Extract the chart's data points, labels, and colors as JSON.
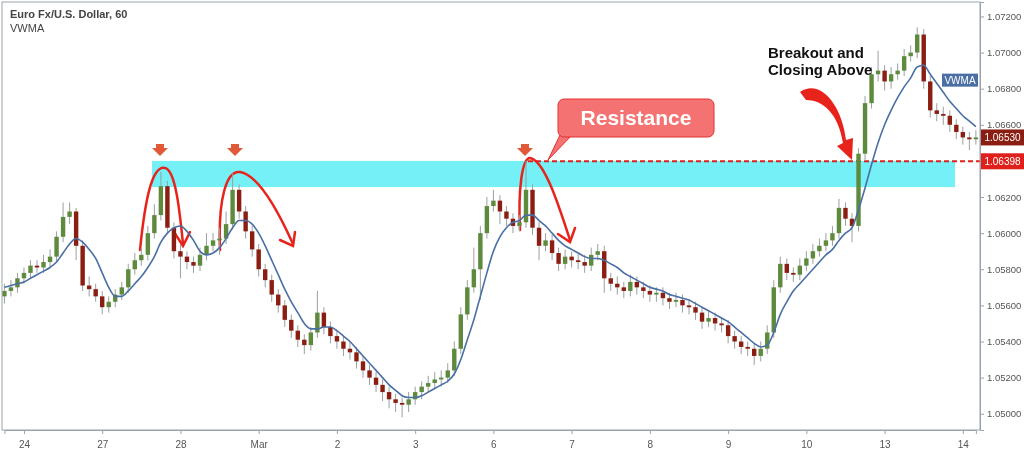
{
  "chart_data": {
    "type": "candlestick",
    "title": "Euro Fx/U.S. Dollar, 60",
    "subtitle": "VWMA",
    "categories": [
      null,
      null,
      null,
      "24",
      null,
      null,
      null,
      null,
      null,
      null,
      null,
      null,
      null,
      null,
      null,
      "27",
      null,
      null,
      null,
      null,
      null,
      null,
      null,
      null,
      null,
      null,
      null,
      "28",
      null,
      null,
      null,
      null,
      null,
      null,
      null,
      null,
      null,
      null,
      null,
      "Mar",
      null,
      null,
      null,
      null,
      null,
      null,
      null,
      null,
      null,
      null,
      null,
      "2",
      null,
      null,
      null,
      null,
      null,
      null,
      null,
      null,
      null,
      null,
      null,
      "3",
      null,
      null,
      null,
      null,
      null,
      null,
      null,
      null,
      null,
      null,
      null,
      "6",
      null,
      null,
      null,
      null,
      null,
      null,
      null,
      null,
      null,
      null,
      null,
      "7",
      null,
      null,
      null,
      null,
      null,
      null,
      null,
      null,
      null,
      null,
      null,
      "8",
      null,
      null,
      null,
      null,
      null,
      null,
      null,
      null,
      null,
      null,
      null,
      "9",
      null,
      null,
      null,
      null,
      null,
      null,
      null,
      null,
      null,
      null,
      null,
      "10",
      null,
      null,
      null,
      null,
      null,
      null,
      null,
      null,
      null,
      null,
      null,
      "13",
      null,
      null,
      null,
      null,
      null,
      null,
      null,
      null,
      null,
      null,
      null,
      "14",
      null,
      null
    ],
    "ohlc": [
      [
        1.0565,
        1.0572,
        1.0561,
        1.0568
      ],
      [
        1.0568,
        1.0574,
        1.0565,
        1.057
      ],
      [
        1.057,
        1.0578,
        1.0567,
        1.0575
      ],
      [
        1.0575,
        1.0581,
        1.0572,
        1.0578
      ],
      [
        1.0578,
        1.0585,
        1.0575,
        1.0582
      ],
      [
        1.0582,
        1.0585,
        1.0578,
        1.0581
      ],
      [
        1.0581,
        1.0588,
        1.0578,
        1.0584
      ],
      [
        1.0584,
        1.0591,
        1.0581,
        1.0587
      ],
      [
        1.0587,
        1.0601,
        1.0584,
        1.0598
      ],
      [
        1.0598,
        1.0617,
        1.0595,
        1.0609
      ],
      [
        1.0609,
        1.0617,
        1.0605,
        1.0612
      ],
      [
        1.0612,
        1.0614,
        1.0585,
        1.0593
      ],
      [
        1.0593,
        1.0596,
        1.0568,
        1.0571
      ],
      [
        1.0571,
        1.0576,
        1.0565,
        1.0569
      ],
      [
        1.0569,
        1.0572,
        1.0562,
        1.0565
      ],
      [
        1.0565,
        1.0568,
        1.0555,
        1.0559
      ],
      [
        1.0559,
        1.0565,
        1.0556,
        1.0562
      ],
      [
        1.0562,
        1.0569,
        1.0559,
        1.0566
      ],
      [
        1.0566,
        1.0573,
        1.0563,
        1.057
      ],
      [
        1.057,
        1.0583,
        1.0567,
        1.058
      ],
      [
        1.058,
        1.0589,
        1.0577,
        1.0585
      ],
      [
        1.0585,
        1.0592,
        1.0582,
        1.0588
      ],
      [
        1.0588,
        1.0604,
        1.0585,
        1.06
      ],
      [
        1.06,
        1.0616,
        1.0597,
        1.061
      ],
      [
        1.061,
        1.0634,
        1.0607,
        1.0626
      ],
      [
        1.0626,
        1.0629,
        1.06,
        1.0603
      ],
      [
        1.0603,
        1.0606,
        1.0586,
        1.059
      ],
      [
        1.059,
        1.0594,
        1.0575,
        1.0587
      ],
      [
        1.0587,
        1.059,
        1.058,
        1.0584
      ],
      [
        1.0584,
        1.0587,
        1.0578,
        1.0582
      ],
      [
        1.0582,
        1.0592,
        1.0579,
        1.0588
      ],
      [
        1.0588,
        1.06,
        1.0585,
        1.0593
      ],
      [
        1.0593,
        1.06,
        1.059,
        1.0596
      ],
      [
        1.0596,
        1.0603,
        1.0588,
        1.0597
      ],
      [
        1.0597,
        1.0612,
        1.0594,
        1.0605
      ],
      [
        1.0605,
        1.0633,
        1.0602,
        1.0624
      ],
      [
        1.0624,
        1.0627,
        1.0608,
        1.0612
      ],
      [
        1.0612,
        1.0615,
        1.0597,
        1.0601
      ],
      [
        1.0601,
        1.0604,
        1.0587,
        1.0591
      ],
      [
        1.0591,
        1.0594,
        1.0576,
        1.058
      ],
      [
        1.058,
        1.0583,
        1.057,
        1.0574
      ],
      [
        1.0574,
        1.0577,
        1.0562,
        1.0566
      ],
      [
        1.0566,
        1.0569,
        1.0556,
        1.056
      ],
      [
        1.056,
        1.0563,
        1.0548,
        1.0552
      ],
      [
        1.0552,
        1.0555,
        1.0542,
        1.0546
      ],
      [
        1.0546,
        1.0549,
        1.0537,
        1.0541
      ],
      [
        1.0541,
        1.0544,
        1.0533,
        1.0538
      ],
      [
        1.0538,
        1.0548,
        1.0535,
        1.0545
      ],
      [
        1.0545,
        1.0568,
        1.0542,
        1.0556
      ],
      [
        1.0556,
        1.0559,
        1.0544,
        1.0548
      ],
      [
        1.0548,
        1.0551,
        1.0539,
        1.0543
      ],
      [
        1.0543,
        1.0546,
        1.0536,
        1.054
      ],
      [
        1.054,
        1.0543,
        1.0532,
        1.0536
      ],
      [
        1.0536,
        1.054,
        1.053,
        1.0534
      ],
      [
        1.0534,
        1.0537,
        1.0525,
        1.0529
      ],
      [
        1.0529,
        1.0532,
        1.052,
        1.0524
      ],
      [
        1.0524,
        1.0527,
        1.0516,
        1.052
      ],
      [
        1.052,
        1.0523,
        1.0512,
        1.0516
      ],
      [
        1.0516,
        1.0519,
        1.0507,
        1.0512
      ],
      [
        1.0512,
        1.0515,
        1.0503,
        1.0508
      ],
      [
        1.0508,
        1.0511,
        1.0501,
        1.0506
      ],
      [
        1.0506,
        1.0509,
        1.0498,
        1.0505
      ],
      [
        1.0505,
        1.0512,
        1.0501,
        1.0508
      ],
      [
        1.0508,
        1.0515,
        1.0505,
        1.0512
      ],
      [
        1.0512,
        1.0518,
        1.0508,
        1.0515
      ],
      [
        1.0515,
        1.0521,
        1.0512,
        1.0517
      ],
      [
        1.0517,
        1.0523,
        1.0514,
        1.0519
      ],
      [
        1.0519,
        1.0524,
        1.0515,
        1.052
      ],
      [
        1.052,
        1.0528,
        1.0517,
        1.0524
      ],
      [
        1.0524,
        1.054,
        1.0521,
        1.0536
      ],
      [
        1.0536,
        1.0559,
        1.0533,
        1.0555
      ],
      [
        1.0555,
        1.0574,
        1.0552,
        1.057
      ],
      [
        1.057,
        1.0592,
        1.0567,
        1.058
      ],
      [
        1.058,
        1.0604,
        1.0563,
        1.06
      ],
      [
        1.06,
        1.062,
        1.0597,
        1.0615
      ],
      [
        1.0615,
        1.0624,
        1.0612,
        1.0618
      ],
      [
        1.0618,
        1.0621,
        1.0605,
        1.0612
      ],
      [
        1.0612,
        1.0615,
        1.0604,
        1.0608
      ],
      [
        1.0608,
        1.0611,
        1.06,
        1.0604
      ],
      [
        1.0604,
        1.061,
        1.0601,
        1.0606
      ],
      [
        1.0606,
        1.064,
        1.0603,
        1.0624
      ],
      [
        1.0624,
        1.0627,
        1.0599,
        1.0603
      ],
      [
        1.0603,
        1.0606,
        1.0585,
        1.0593
      ],
      [
        1.0593,
        1.06,
        1.059,
        1.0596
      ],
      [
        1.0596,
        1.0599,
        1.0585,
        1.0589
      ],
      [
        1.0589,
        1.0592,
        1.0579,
        1.0583
      ],
      [
        1.0583,
        1.0591,
        1.058,
        1.0587
      ],
      [
        1.0587,
        1.059,
        1.0581,
        1.0585
      ],
      [
        1.0585,
        1.0589,
        1.058,
        1.0584
      ],
      [
        1.0584,
        1.0588,
        1.0578,
        1.0582
      ],
      [
        1.0582,
        1.0592,
        1.0579,
        1.0588
      ],
      [
        1.0588,
        1.0594,
        1.0585,
        1.059
      ],
      [
        1.059,
        1.0593,
        1.0567,
        1.0575
      ],
      [
        1.0575,
        1.0578,
        1.0568,
        1.0572
      ],
      [
        1.0572,
        1.0576,
        1.0566,
        1.057
      ],
      [
        1.057,
        1.0573,
        1.0564,
        1.0568
      ],
      [
        1.0568,
        1.0577,
        1.0565,
        1.0573
      ],
      [
        1.0573,
        1.0576,
        1.0566,
        1.057
      ],
      [
        1.057,
        1.0573,
        1.0564,
        1.0568
      ],
      [
        1.0568,
        1.0571,
        1.0562,
        1.0566
      ],
      [
        1.0566,
        1.057,
        1.0562,
        1.0567
      ],
      [
        1.0567,
        1.057,
        1.056,
        1.0564
      ],
      [
        1.0564,
        1.0567,
        1.0558,
        1.0562
      ],
      [
        1.0562,
        1.0567,
        1.0559,
        1.0563
      ],
      [
        1.0563,
        1.0566,
        1.0556,
        1.056
      ],
      [
        1.056,
        1.0563,
        1.0555,
        1.0559
      ],
      [
        1.0559,
        1.0562,
        1.0552,
        1.0556
      ],
      [
        1.0556,
        1.0559,
        1.0547,
        1.0551
      ],
      [
        1.0551,
        1.0557,
        1.0548,
        1.0553
      ],
      [
        1.0553,
        1.0556,
        1.0546,
        1.055
      ],
      [
        1.055,
        1.0553,
        1.0545,
        1.0549
      ],
      [
        1.0549,
        1.0552,
        1.0539,
        1.0543
      ],
      [
        1.0543,
        1.0546,
        1.0536,
        1.054
      ],
      [
        1.054,
        1.0543,
        1.0533,
        1.0537
      ],
      [
        1.0537,
        1.054,
        1.0532,
        1.0536
      ],
      [
        1.0536,
        1.0539,
        1.0527,
        1.0532
      ],
      [
        1.0532,
        1.054,
        1.0529,
        1.0536
      ],
      [
        1.0536,
        1.0549,
        1.0533,
        1.0545
      ],
      [
        1.0545,
        1.0574,
        1.0542,
        1.057
      ],
      [
        1.057,
        1.0587,
        1.0567,
        1.0583
      ],
      [
        1.0583,
        1.0586,
        1.0574,
        1.0578
      ],
      [
        1.0578,
        1.0581,
        1.0573,
        1.0577
      ],
      [
        1.0577,
        1.0586,
        1.0574,
        1.0582
      ],
      [
        1.0582,
        1.059,
        1.0579,
        1.0586
      ],
      [
        1.0586,
        1.0594,
        1.0583,
        1.059
      ],
      [
        1.059,
        1.0597,
        1.0587,
        1.0593
      ],
      [
        1.0593,
        1.06,
        1.059,
        1.0596
      ],
      [
        1.0596,
        1.0604,
        1.0593,
        1.06
      ],
      [
        1.06,
        1.0619,
        1.0597,
        1.0614
      ],
      [
        1.0614,
        1.0617,
        1.0604,
        1.0608
      ],
      [
        1.0608,
        1.0611,
        1.0595,
        1.0604
      ],
      [
        1.0604,
        1.0647,
        1.0601,
        1.0644
      ],
      [
        1.0644,
        1.0676,
        1.064,
        1.0672
      ],
      [
        1.0672,
        1.0692,
        1.0669,
        1.0688
      ],
      [
        1.0688,
        1.0701,
        1.0684,
        1.069
      ],
      [
        1.069,
        1.0693,
        1.0679,
        1.0684
      ],
      [
        1.0684,
        1.0692,
        1.068,
        1.0688
      ],
      [
        1.0688,
        1.0694,
        1.0685,
        1.069
      ],
      [
        1.069,
        1.0702,
        1.0687,
        1.0698
      ],
      [
        1.0698,
        1.0704,
        1.0695,
        1.07
      ],
      [
        1.07,
        1.0714,
        1.0697,
        1.071
      ],
      [
        1.071,
        1.0713,
        1.068,
        1.0684
      ],
      [
        1.0684,
        1.0687,
        1.0664,
        1.0668
      ],
      [
        1.0668,
        1.0672,
        1.0662,
        1.0666
      ],
      [
        1.0666,
        1.067,
        1.066,
        1.0665
      ],
      [
        1.0665,
        1.0668,
        1.0656,
        1.066
      ],
      [
        1.066,
        1.0663,
        1.0652,
        1.0656
      ],
      [
        1.0656,
        1.0659,
        1.0649,
        1.0653
      ],
      [
        1.0653,
        1.0656,
        1.0646,
        1.0652
      ],
      [
        1.0652,
        1.0657,
        1.0649,
        1.0653
      ]
    ],
    "colors": [
      "#5d8a3c",
      "#5d8a3c",
      "#5d8a3c",
      "#5d8a3c",
      "#5d8a3c",
      "#8b1e12",
      "#5d8a3c",
      "#5d8a3c",
      "#5d8a3c",
      "#5d8a3c",
      "#5d8a3c",
      "#8b1e12",
      "#8b1e12",
      "#8b1e12",
      "#8b1e12",
      "#8b1e12",
      "#5d8a3c",
      "#5d8a3c",
      "#5d8a3c",
      "#5d8a3c",
      "#5d8a3c",
      "#5d8a3c",
      "#5d8a3c",
      "#5d8a3c",
      "#5d8a3c",
      "#8b1e12",
      "#8b1e12",
      "#8b1e12",
      "#8b1e12",
      "#8b1e12",
      "#5d8a3c",
      "#5d8a3c",
      "#5d8a3c",
      "#5d8a3c",
      "#5d8a3c",
      "#5d8a3c",
      "#8b1e12",
      "#8b1e12",
      "#8b1e12",
      "#8b1e12",
      "#8b1e12",
      "#8b1e12",
      "#8b1e12",
      "#8b1e12",
      "#8b1e12",
      "#8b1e12",
      "#8b1e12",
      "#5d8a3c",
      "#5d8a3c",
      "#8b1e12",
      "#8b1e12",
      "#8b1e12",
      "#8b1e12",
      "#8b1e12",
      "#8b1e12",
      "#8b1e12",
      "#8b1e12",
      "#8b1e12",
      "#8b1e12",
      "#8b1e12",
      "#8b1e12",
      "#8b1e12",
      "#5d8a3c",
      "#5d8a3c",
      "#5d8a3c",
      "#5d8a3c",
      "#5d8a3c",
      "#5d8a3c",
      "#5d8a3c",
      "#5d8a3c",
      "#5d8a3c",
      "#5d8a3c",
      "#5d8a3c",
      "#5d8a3c",
      "#5d8a3c",
      "#5d8a3c",
      "#8b1e12",
      "#8b1e12",
      "#8b1e12",
      "#5d8a3c",
      "#5d8a3c",
      "#8b1e12",
      "#8b1e12",
      "#5d8a3c",
      "#8b1e12",
      "#8b1e12",
      "#5d8a3c",
      "#8b1e12",
      "#8b1e12",
      "#8b1e12",
      "#5d8a3c",
      "#5d8a3c",
      "#8b1e12",
      "#8b1e12",
      "#8b1e12",
      "#8b1e12",
      "#5d8a3c",
      "#8b1e12",
      "#8b1e12",
      "#8b1e12",
      "#5d8a3c",
      "#8b1e12",
      "#8b1e12",
      "#5d8a3c",
      "#8b1e12",
      "#8b1e12",
      "#8b1e12",
      "#8b1e12",
      "#5d8a3c",
      "#8b1e12",
      "#8b1e12",
      "#8b1e12",
      "#8b1e12",
      "#8b1e12",
      "#8b1e12",
      "#8b1e12",
      "#5d8a3c",
      "#5d8a3c",
      "#5d8a3c",
      "#5d8a3c",
      "#8b1e12",
      "#8b1e12",
      "#5d8a3c",
      "#5d8a3c",
      "#5d8a3c",
      "#5d8a3c",
      "#5d8a3c",
      "#5d8a3c",
      "#5d8a3c",
      "#8b1e12",
      "#8b1e12",
      "#5d8a3c",
      "#5d8a3c",
      "#5d8a3c",
      "#5d8a3c",
      "#8b1e12",
      "#5d8a3c",
      "#5d8a3c",
      "#5d8a3c",
      "#5d8a3c",
      "#5d8a3c",
      "#8b1e12",
      "#8b1e12",
      "#8b1e12",
      "#8b1e12",
      "#8b1e12",
      "#8b1e12",
      "#8b1e12",
      "#8b1e12",
      "#5d8a3c"
    ],
    "series": [
      {
        "name": "VWMA",
        "type": "line",
        "color": "#4a6fa5",
        "values": [
          1.057,
          1.0571,
          1.0572,
          1.0573,
          1.0575,
          1.0577,
          1.0579,
          1.0581,
          1.0584,
          1.0589,
          1.0594,
          1.0597,
          1.0595,
          1.0591,
          1.0586,
          1.0578,
          1.057,
          1.0565,
          1.0565,
          1.0568,
          1.0572,
          1.0576,
          1.0581,
          1.0587,
          1.0595,
          1.06,
          1.0603,
          1.0604,
          1.0601,
          1.0596,
          1.059,
          1.0588,
          1.0589,
          1.0592,
          1.0597,
          1.0603,
          1.0607,
          1.0607,
          1.0605,
          1.06,
          1.0593,
          1.0585,
          1.0577,
          1.0569,
          1.0562,
          1.0556,
          1.055,
          1.0547,
          1.0547,
          1.0548,
          1.0548,
          1.0546,
          1.0543,
          1.054,
          1.0536,
          1.0532,
          1.0528,
          1.0524,
          1.052,
          1.0516,
          1.0513,
          1.051,
          1.0509,
          1.0509,
          1.051,
          1.0512,
          1.0514,
          1.0516,
          1.0518,
          1.0522,
          1.053,
          1.0541,
          1.0552,
          1.0565,
          1.0578,
          1.059,
          1.0598,
          1.0603,
          1.0606,
          1.0607,
          1.061,
          1.061,
          1.0607,
          1.0604,
          1.06,
          1.0596,
          1.0593,
          1.0591,
          1.0589,
          1.0587,
          1.0586,
          1.0586,
          1.0585,
          1.0583,
          1.0581,
          1.0578,
          1.0576,
          1.0574,
          1.0572,
          1.057,
          1.0569,
          1.0568,
          1.0566,
          1.0565,
          1.0564,
          1.0563,
          1.0561,
          1.0559,
          1.0557,
          1.0555,
          1.0553,
          1.0551,
          1.0548,
          1.0545,
          1.0542,
          1.0539,
          1.0537,
          1.0538,
          1.0545,
          1.0555,
          1.0562,
          1.0568,
          1.0572,
          1.0576,
          1.058,
          1.0584,
          1.0588,
          1.0591,
          1.0596,
          1.06,
          1.0603,
          1.0613,
          1.0625,
          1.0638,
          1.065,
          1.066,
          1.0668,
          1.0675,
          1.0681,
          1.0686,
          1.0692,
          1.0693,
          1.0688,
          1.0683,
          1.0678,
          1.0673,
          1.0669,
          1.0665,
          1.0662,
          1.0659
        ]
      }
    ],
    "ylim": [
      1.0491,
      1.0728
    ],
    "yticks": [
      {
        "value": 1.05,
        "label": "1.05000"
      },
      {
        "value": 1.052,
        "label": "1.05200"
      },
      {
        "value": 1.054,
        "label": "1.05400"
      },
      {
        "value": 1.056,
        "label": "1.05600"
      },
      {
        "value": 1.058,
        "label": "1.05800"
      },
      {
        "value": 1.06,
        "label": "1.06000"
      },
      {
        "value": 1.062,
        "label": "1.06200"
      },
      {
        "value": 1.066,
        "label": "1.06600"
      },
      {
        "value": 1.068,
        "label": "1.06800"
      },
      {
        "value": 1.07,
        "label": "1.07000"
      },
      {
        "value": 1.072,
        "label": "1.07200"
      }
    ],
    "ref_lines": [
      {
        "axis": "y",
        "value": 1.06398,
        "label": "1.06398",
        "color": "#e0201b",
        "line_style": "dashed"
      }
    ],
    "bands": [
      {
        "axis": "y",
        "from": 1.06255,
        "to": 1.064,
        "color": "#74f0f6"
      }
    ],
    "annotations": [
      "Resistance",
      "Breakout and Closing Above",
      {
        "text": "1.06530",
        "y": 1.0653
      }
    ]
  }
}
